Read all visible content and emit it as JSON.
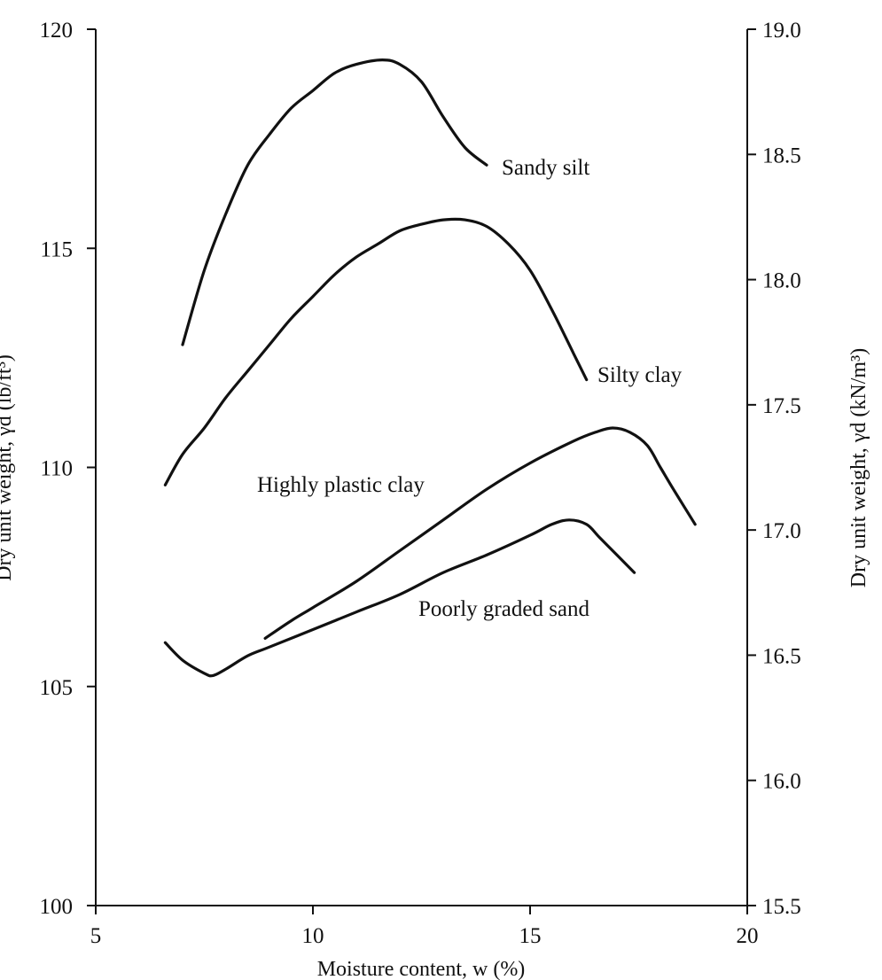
{
  "chart_data": {
    "type": "line",
    "xlabel": "Moisture content, w (%)",
    "ylabel_left": "Dry unit weight, γd (lb/ft³)",
    "ylabel_right": "Dry unit weight, γd (kN/m³)",
    "xlim": [
      5,
      20
    ],
    "ylim_left": [
      100,
      120
    ],
    "ylim_right": [
      15.5,
      19.0
    ],
    "x_ticks": [
      "5",
      "10",
      "15",
      "20"
    ],
    "y_ticks_left": [
      "100",
      "105",
      "110",
      "115",
      "120"
    ],
    "y_ticks_right": [
      "15.5",
      "16.0",
      "16.5",
      "17.0",
      "17.5",
      "18.0",
      "18.5",
      "19.0"
    ],
    "grid": false,
    "series": [
      {
        "name": "Sandy silt",
        "points": [
          [
            7.0,
            112.8
          ],
          [
            7.5,
            114.5
          ],
          [
            8.0,
            115.8
          ],
          [
            8.5,
            116.9
          ],
          [
            9.0,
            117.6
          ],
          [
            9.5,
            118.2
          ],
          [
            10.0,
            118.6
          ],
          [
            10.5,
            119.0
          ],
          [
            11.0,
            119.2
          ],
          [
            11.6,
            119.3
          ],
          [
            12.0,
            119.2
          ],
          [
            12.5,
            118.8
          ],
          [
            13.0,
            118.0
          ],
          [
            13.5,
            117.3
          ],
          [
            14.0,
            116.9
          ]
        ]
      },
      {
        "name": "Silty clay",
        "points": [
          [
            6.6,
            109.6
          ],
          [
            7.0,
            110.3
          ],
          [
            7.5,
            110.9
          ],
          [
            8.0,
            111.6
          ],
          [
            8.5,
            112.2
          ],
          [
            9.0,
            112.8
          ],
          [
            9.5,
            113.4
          ],
          [
            10.0,
            113.9
          ],
          [
            10.5,
            114.4
          ],
          [
            11.0,
            114.8
          ],
          [
            11.5,
            115.1
          ],
          [
            12.0,
            115.4
          ],
          [
            12.5,
            115.55
          ],
          [
            13.0,
            115.65
          ],
          [
            13.5,
            115.65
          ],
          [
            14.0,
            115.5
          ],
          [
            14.5,
            115.1
          ],
          [
            15.0,
            114.5
          ],
          [
            15.5,
            113.6
          ],
          [
            16.0,
            112.6
          ],
          [
            16.3,
            112.0
          ]
        ]
      },
      {
        "name": "Highly plastic clay",
        "points": [
          [
            8.9,
            106.1
          ],
          [
            9.5,
            106.5
          ],
          [
            10.0,
            106.8
          ],
          [
            11.0,
            107.4
          ],
          [
            12.0,
            108.1
          ],
          [
            13.0,
            108.8
          ],
          [
            14.0,
            109.5
          ],
          [
            15.0,
            110.1
          ],
          [
            16.0,
            110.6
          ],
          [
            16.5,
            110.8
          ],
          [
            16.9,
            110.9
          ],
          [
            17.3,
            110.8
          ],
          [
            17.7,
            110.5
          ],
          [
            18.0,
            110.0
          ],
          [
            18.3,
            109.5
          ],
          [
            18.8,
            108.7
          ]
        ]
      },
      {
        "name": "Poorly graded sand",
        "points": [
          [
            6.6,
            106.0
          ],
          [
            7.0,
            105.6
          ],
          [
            7.5,
            105.3
          ],
          [
            7.7,
            105.25
          ],
          [
            8.0,
            105.4
          ],
          [
            8.5,
            105.7
          ],
          [
            9.0,
            105.9
          ],
          [
            10.0,
            106.3
          ],
          [
            11.0,
            106.7
          ],
          [
            12.0,
            107.1
          ],
          [
            13.0,
            107.6
          ],
          [
            14.0,
            108.0
          ],
          [
            15.0,
            108.45
          ],
          [
            15.5,
            108.7
          ],
          [
            15.9,
            108.8
          ],
          [
            16.3,
            108.7
          ],
          [
            16.6,
            108.4
          ],
          [
            17.0,
            108.0
          ],
          [
            17.4,
            107.6
          ]
        ]
      }
    ]
  }
}
